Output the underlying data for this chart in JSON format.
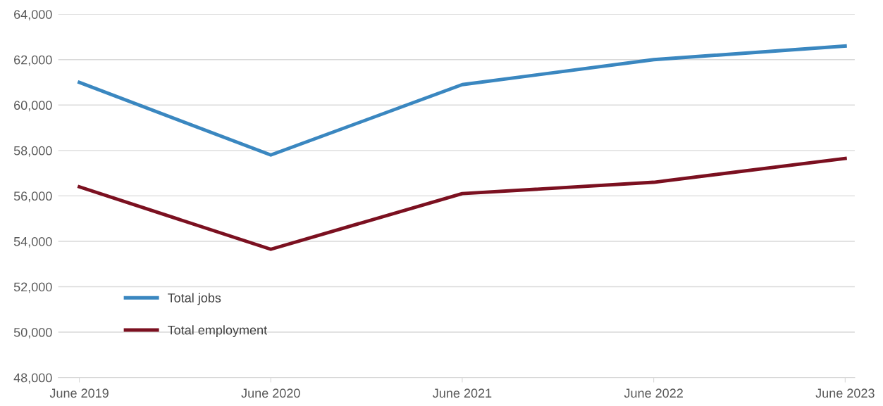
{
  "chart_data": {
    "type": "line",
    "categories": [
      "June 2019",
      "June 2020",
      "June 2021",
      "June 2022",
      "June 2023"
    ],
    "series": [
      {
        "name": "Total jobs",
        "color": "#3a87c0",
        "values": [
          61000,
          57800,
          60900,
          62000,
          62600
        ]
      },
      {
        "name": "Total employment",
        "color": "#7b1020",
        "values": [
          56400,
          53650,
          56100,
          56600,
          57650
        ]
      }
    ],
    "ylim": [
      48000,
      64000
    ],
    "yticks": [
      {
        "value": 48000,
        "label": "48,000"
      },
      {
        "value": 50000,
        "label": "50,000"
      },
      {
        "value": 52000,
        "label": "52,000"
      },
      {
        "value": 54000,
        "label": "54,000"
      },
      {
        "value": 56000,
        "label": "56,000"
      },
      {
        "value": 58000,
        "label": "58,000"
      },
      {
        "value": 60000,
        "label": "60,000"
      },
      {
        "value": 62000,
        "label": "62,000"
      },
      {
        "value": 64000,
        "label": "64,000"
      }
    ],
    "grid": "y",
    "legend": "bottom left",
    "marker": "none",
    "line_style": "solid"
  }
}
